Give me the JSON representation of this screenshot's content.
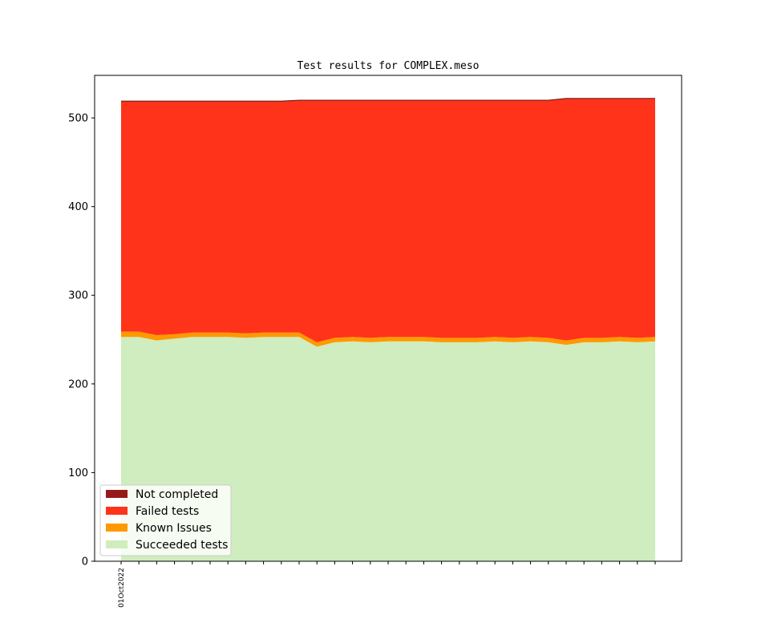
{
  "chart_data": {
    "type": "area",
    "title": "Test results for COMPLEX.meso",
    "xlabel": "",
    "ylabel": "",
    "ylim": [
      0,
      548
    ],
    "yticks": [
      0,
      100,
      200,
      300,
      400,
      500
    ],
    "x_count": 31,
    "x_tick_labels": [
      "01Oct2022",
      "",
      "",
      "",
      "",
      "",
      "",
      "",
      "",
      "",
      "",
      "",
      "",
      "",
      "",
      "",
      "",
      "",
      "",
      "",
      "",
      "",
      "",
      "",
      "",
      "",
      "",
      "",
      "",
      "",
      ""
    ],
    "stacking": "stacked",
    "series": [
      {
        "name": "Succeeded tests",
        "color": "#cfedbf",
        "values": [
          253,
          253,
          249,
          251,
          253,
          253,
          253,
          252,
          253,
          253,
          253,
          242,
          247,
          248,
          247,
          248,
          248,
          248,
          247,
          247,
          247,
          248,
          247,
          248,
          247,
          244,
          247,
          247,
          248,
          247,
          248
        ]
      },
      {
        "name": "Known Issues",
        "color": "#ff9900",
        "values": [
          6,
          6,
          6,
          5,
          5,
          5,
          5,
          5,
          5,
          5,
          5,
          5,
          5,
          5,
          5,
          5,
          5,
          5,
          5,
          5,
          5,
          5,
          5,
          5,
          5,
          5,
          5,
          5,
          5,
          5,
          5
        ]
      },
      {
        "name": "Failed tests",
        "color": "#ff331a",
        "values": [
          260,
          260,
          264,
          263,
          261,
          261,
          261,
          262,
          261,
          261,
          262,
          273,
          268,
          267,
          268,
          267,
          267,
          267,
          268,
          268,
          268,
          267,
          268,
          267,
          268,
          273,
          270,
          270,
          269,
          270,
          269
        ]
      },
      {
        "name": "Not completed",
        "color": "#961a1a",
        "values": [
          0,
          0,
          0,
          0,
          0,
          0,
          0,
          0,
          0,
          0,
          0,
          0,
          0,
          0,
          0,
          0,
          0,
          0,
          0,
          0,
          0,
          0,
          0,
          0,
          0,
          0,
          0,
          0,
          0,
          0,
          0
        ]
      }
    ],
    "legend": {
      "position": "lower-left",
      "order": [
        "Not completed",
        "Failed tests",
        "Known Issues",
        "Succeeded tests"
      ]
    },
    "grid": false
  }
}
